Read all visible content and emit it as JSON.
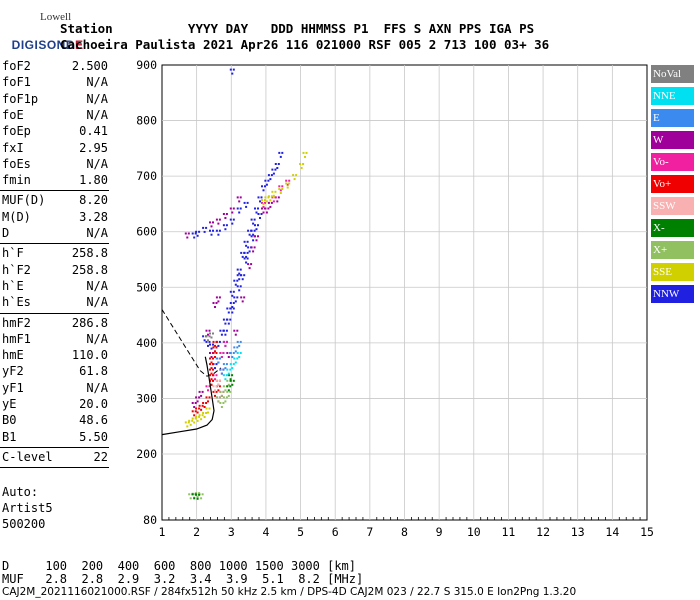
{
  "logo": {
    "top": "Lowell",
    "main_a": "DIGISOND",
    "main_b": "E"
  },
  "header": {
    "line1": "Station          YYYY DAY   DDD HHMMSS P1  FFS S AXN PPS IGA PS",
    "line2": "Cachoeira Paulista 2021 Apr26 116 021000 RSF 005 2 713 100 03+ 36"
  },
  "params": [
    {
      "label": "foF2",
      "value": "2.500"
    },
    {
      "label": "foF1",
      "value": "N/A"
    },
    {
      "label": "foF1p",
      "value": "N/A"
    },
    {
      "label": "foE",
      "value": "N/A"
    },
    {
      "label": "foEp",
      "value": "0.41"
    },
    {
      "label": "fxI",
      "value": "2.95"
    },
    {
      "label": "foEs",
      "value": "N/A"
    },
    {
      "label": "fmin",
      "value": "1.80"
    },
    {
      "label": "MUF(D)",
      "value": "8.20"
    },
    {
      "label": "M(D)",
      "value": "3.28"
    },
    {
      "label": "D",
      "value": "N/A"
    },
    {
      "label": "h`F",
      "value": "258.8"
    },
    {
      "label": "h`F2",
      "value": "258.8"
    },
    {
      "label": "h`E",
      "value": "N/A"
    },
    {
      "label": "h`Es",
      "value": "N/A"
    },
    {
      "label": "hmF2",
      "value": "286.8"
    },
    {
      "label": "hmF1",
      "value": "N/A"
    },
    {
      "label": "hmE",
      "value": "110.0"
    },
    {
      "label": "yF2",
      "value": "61.8"
    },
    {
      "label": "yF1",
      "value": "N/A"
    },
    {
      "label": "yE",
      "value": "20.0"
    },
    {
      "label": "B0",
      "value": "48.6"
    },
    {
      "label": "B1",
      "value": "5.50"
    },
    {
      "label": "C-level",
      "value": "22"
    }
  ],
  "auto": {
    "line1": "Auto:",
    "line2": "Artist5",
    "line3": "500200"
  },
  "legend": [
    {
      "label": "NoVal",
      "color": "#808080"
    },
    {
      "label": "NNE",
      "color": "#00e0f0"
    },
    {
      "label": "E",
      "color": "#3a8af0"
    },
    {
      "label": "W",
      "color": "#a0009a"
    },
    {
      "label": "Vo-",
      "color": "#f020a0"
    },
    {
      "label": "Vo+",
      "color": "#f00000"
    },
    {
      "label": "SSW",
      "color": "#f8b0b0"
    },
    {
      "label": "X-",
      "color": "#008000"
    },
    {
      "label": "X+",
      "color": "#90c060"
    },
    {
      "label": "SSE",
      "color": "#d0d000"
    },
    {
      "label": "NNW",
      "color": "#2020e0"
    }
  ],
  "footer": {
    "row_d": "D     100  200  400  600  800 1000 1500 3000 [km]",
    "row_muf": "MUF   2.8  2.8  2.9  3.2  3.4  3.9  5.1  8.2 [MHz]",
    "file_line": "CAJ2M_2021116021000.RSF / 284fx512h 50 kHz 2.5 km / DPS-4D CAJ2M 023 / 22.7 S 315.0 E Ion2Png 1.3.20"
  },
  "chart_data": {
    "type": "scatter",
    "xlim": [
      1,
      15
    ],
    "ylim": [
      80,
      900
    ],
    "xticks": [
      "1",
      "2",
      "3",
      "4",
      "5",
      "6",
      "7",
      "8",
      "9",
      "10",
      "11",
      "12",
      "13",
      "14",
      "15"
    ],
    "yticks": [
      "80",
      "200",
      "300",
      "400",
      "500",
      "600",
      "700",
      "800",
      "900"
    ],
    "grid": true,
    "legend_position": "right",
    "series": [
      {
        "name": "NNW",
        "color": "#2020e0",
        "points": [
          [
            2.2,
            410
          ],
          [
            2.3,
            400
          ],
          [
            2.4,
            395
          ],
          [
            2.5,
            390
          ],
          [
            2.6,
            400
          ],
          [
            2.7,
            420
          ],
          [
            2.8,
            440
          ],
          [
            2.9,
            460
          ],
          [
            3.0,
            490
          ],
          [
            3.1,
            510
          ],
          [
            3.2,
            530
          ],
          [
            3.3,
            560
          ],
          [
            3.4,
            580
          ],
          [
            3.5,
            600
          ],
          [
            3.6,
            620
          ],
          [
            3.7,
            640
          ],
          [
            3.8,
            660
          ],
          [
            3.9,
            680
          ],
          [
            4.0,
            690
          ],
          [
            4.1,
            700
          ],
          [
            4.2,
            710
          ],
          [
            4.3,
            720
          ],
          [
            4.4,
            740
          ],
          [
            2.9,
            440
          ],
          [
            3.0,
            460
          ],
          [
            3.1,
            480
          ],
          [
            3.2,
            500
          ],
          [
            3.3,
            520
          ],
          [
            3.4,
            550
          ],
          [
            3.5,
            570
          ],
          [
            3.6,
            590
          ],
          [
            3.7,
            610
          ],
          [
            3.8,
            630
          ],
          [
            2.8,
            420
          ],
          [
            3.0,
            470
          ],
          [
            3.2,
            520
          ],
          [
            3.4,
            560
          ],
          [
            3.6,
            600
          ],
          [
            2.6,
            600
          ],
          [
            2.8,
            610
          ],
          [
            3.0,
            620
          ],
          [
            3.2,
            640
          ],
          [
            3.4,
            650
          ],
          [
            2.4,
            600
          ],
          [
            2.2,
            605
          ],
          [
            2.0,
            598
          ],
          [
            1.9,
            595
          ],
          [
            2.5,
            360
          ],
          [
            2.6,
            370
          ],
          [
            2.7,
            380
          ],
          [
            2.8,
            400
          ],
          [
            3.0,
            890
          ]
        ]
      },
      {
        "name": "W",
        "color": "#a0009a",
        "points": [
          [
            2.3,
            420
          ],
          [
            2.5,
            470
          ],
          [
            2.6,
            480
          ],
          [
            2.4,
            380
          ],
          [
            2.7,
            350
          ],
          [
            2.9,
            380
          ],
          [
            3.1,
            420
          ],
          [
            3.3,
            480
          ],
          [
            3.5,
            540
          ],
          [
            3.7,
            590
          ],
          [
            3.9,
            640
          ],
          [
            4.1,
            650
          ],
          [
            4.3,
            660
          ],
          [
            2.8,
            630
          ],
          [
            2.6,
            620
          ],
          [
            2.4,
            615
          ],
          [
            3.0,
            640
          ],
          [
            3.2,
            660
          ],
          [
            4.0,
            640
          ],
          [
            3.6,
            570
          ],
          [
            2.0,
            300
          ],
          [
            1.9,
            290
          ],
          [
            2.1,
            310
          ],
          [
            1.7,
            595
          ]
        ]
      },
      {
        "name": "Vo-",
        "color": "#f020a0",
        "points": [
          [
            2.6,
            370
          ],
          [
            2.7,
            380
          ],
          [
            2.8,
            400
          ],
          [
            2.3,
            320
          ],
          [
            2.4,
            330
          ],
          [
            2.5,
            340
          ],
          [
            2.6,
            300
          ],
          [
            2.7,
            310
          ],
          [
            4.2,
            660
          ],
          [
            4.4,
            680
          ],
          [
            4.6,
            690
          ],
          [
            3.9,
            650
          ]
        ]
      },
      {
        "name": "Vo+",
        "color": "#f00000",
        "points": [
          [
            2.4,
            330
          ],
          [
            2.4,
            340
          ],
          [
            2.4,
            350
          ],
          [
            2.4,
            360
          ],
          [
            2.4,
            370
          ],
          [
            2.5,
            380
          ],
          [
            2.5,
            390
          ],
          [
            2.5,
            400
          ],
          [
            2.3,
            300
          ],
          [
            2.2,
            290
          ],
          [
            2.1,
            285
          ],
          [
            2.0,
            280
          ],
          [
            1.9,
            275
          ],
          [
            2.5,
            310
          ],
          [
            2.6,
            320
          ],
          [
            2.6,
            330
          ]
        ]
      },
      {
        "name": "SSE",
        "color": "#d0d000",
        "points": [
          [
            1.7,
            255
          ],
          [
            1.8,
            258
          ],
          [
            1.9,
            262
          ],
          [
            2.0,
            265
          ],
          [
            2.1,
            268
          ],
          [
            2.2,
            272
          ],
          [
            2.3,
            280
          ],
          [
            4.0,
            660
          ],
          [
            4.2,
            670
          ],
          [
            4.4,
            675
          ],
          [
            4.6,
            685
          ],
          [
            4.8,
            700
          ],
          [
            5.0,
            720
          ],
          [
            5.1,
            740
          ],
          [
            3.9,
            655
          ],
          [
            4.1,
            662
          ]
        ]
      },
      {
        "name": "X+",
        "color": "#90c060",
        "points": [
          [
            2.6,
            300
          ],
          [
            2.7,
            310
          ],
          [
            2.8,
            320
          ],
          [
            2.9,
            330
          ],
          [
            2.7,
            290
          ],
          [
            2.8,
            300
          ],
          [
            2.9,
            310
          ],
          [
            1.8,
            125
          ],
          [
            1.9,
            126
          ],
          [
            2.0,
            127
          ],
          [
            2.1,
            125
          ]
        ]
      },
      {
        "name": "X-",
        "color": "#008000",
        "points": [
          [
            2.9,
            320
          ],
          [
            3.0,
            330
          ],
          [
            2.95,
            340
          ],
          [
            1.9,
            125
          ],
          [
            2.0,
            124
          ]
        ]
      },
      {
        "name": "NNE",
        "color": "#00e0f0",
        "points": [
          [
            2.9,
            350
          ],
          [
            3.0,
            360
          ],
          [
            3.1,
            370
          ],
          [
            2.8,
            340
          ],
          [
            3.2,
            380
          ]
        ]
      },
      {
        "name": "E",
        "color": "#3a8af0",
        "points": [
          [
            2.6,
            370
          ],
          [
            2.7,
            350
          ],
          [
            2.8,
            360
          ],
          [
            3.0,
            380
          ],
          [
            3.1,
            390
          ],
          [
            3.2,
            400
          ]
        ]
      },
      {
        "name": "SSW",
        "color": "#f8b0b0",
        "points": [
          [
            2.5,
            320
          ],
          [
            2.6,
            330
          ]
        ]
      },
      {
        "name": "NoVal",
        "color": "#808080",
        "points": [
          [
            2.3,
            410
          ],
          [
            2.4,
            415
          ]
        ]
      }
    ],
    "profile_curve": [
      [
        1.0,
        235
      ],
      [
        1.5,
        240
      ],
      [
        2.0,
        245
      ],
      [
        2.3,
        252
      ],
      [
        2.45,
        262
      ],
      [
        2.5,
        278
      ],
      [
        2.45,
        300
      ],
      [
        2.4,
        320
      ],
      [
        2.35,
        340
      ],
      [
        2.3,
        360
      ],
      [
        2.25,
        375
      ]
    ],
    "dashed_curve": [
      [
        1.0,
        460
      ],
      [
        1.3,
        430
      ],
      [
        1.6,
        400
      ],
      [
        1.9,
        370
      ],
      [
        2.1,
        350
      ],
      [
        2.3,
        340
      ],
      [
        2.5,
        345
      ],
      [
        2.7,
        355
      ]
    ]
  }
}
